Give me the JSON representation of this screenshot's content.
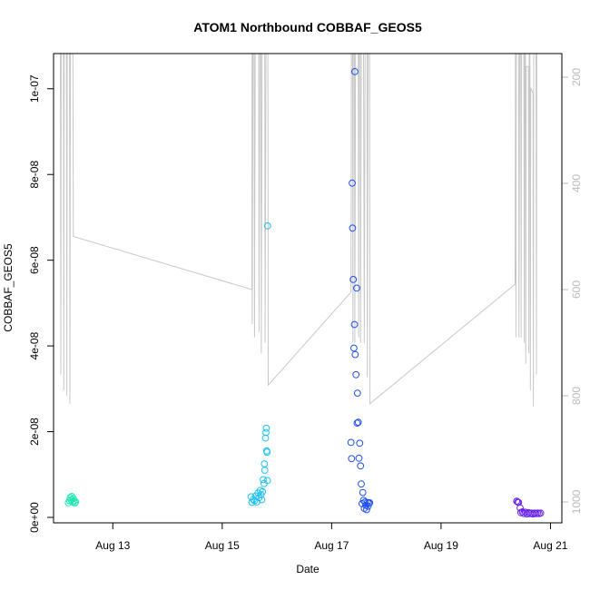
{
  "chart_data": {
    "type": "scatter",
    "title": "ATOM1 Northbound COBBAF_GEOS5",
    "xlabel": "Date",
    "ylabel": "COBBAF_GEOS5",
    "x_ticks": [
      "Aug 13",
      "Aug 15",
      "Aug 17",
      "Aug 19",
      "Aug 21"
    ],
    "y_ticks": [
      "0e+00",
      "2e-08",
      "4e-08",
      "6e-08",
      "8e-08",
      "1e-07"
    ],
    "y2_ticks": [
      "200",
      "400",
      "600",
      "800",
      "1000"
    ],
    "xlim": [
      "2016-08-11 22:00",
      "2016-08-21 05:00"
    ],
    "ylim": [
      0,
      1.08e-07
    ],
    "y2lim": [
      1030,
      140
    ],
    "y2_reversed": true,
    "grid": false,
    "legend": "none",
    "colors": {
      "axis": "#000000",
      "altitude_line": "#c8c8c8",
      "right_axis": "#bbbbbb",
      "flight1": "#1ee8b2",
      "flight2": "#1fc0f2",
      "flight3": "#1f50f0",
      "flight4": "#6a22ee"
    },
    "series": [
      {
        "points": [
          [
            "2016-08-12 04:30",
            3.4e-09
          ],
          [
            "2016-08-12 05:00",
            3.9e-09
          ],
          [
            "2016-08-12 05:20",
            4.6e-09
          ],
          [
            "2016-08-12 05:40",
            4.1e-09
          ],
          [
            "2016-08-12 06:00",
            4.9e-09
          ],
          [
            "2016-08-12 06:20",
            3.6e-09
          ],
          [
            "2016-08-12 06:40",
            4.4e-09
          ],
          [
            "2016-08-12 07:00",
            3.8e-09
          ],
          [
            "2016-08-12 07:20",
            3.3e-09
          ],
          [
            "2016-08-12 07:40",
            3.6e-09
          ]
        ]
      },
      {
        "points": [
          [
            "2016-08-15 12:40",
            4.8e-09
          ],
          [
            "2016-08-15 13:00",
            3.5e-09
          ],
          [
            "2016-08-15 13:40",
            4.2e-09
          ],
          [
            "2016-08-15 14:10",
            3.9e-09
          ],
          [
            "2016-08-15 14:40",
            5e-09
          ],
          [
            "2016-08-15 15:10",
            3.6e-09
          ],
          [
            "2016-08-15 15:40",
            5.7e-09
          ],
          [
            "2016-08-15 16:10",
            4.6e-09
          ],
          [
            "2016-08-15 16:40",
            6.3e-09
          ],
          [
            "2016-08-15 17:00",
            5.3e-09
          ],
          [
            "2016-08-15 17:20",
            4.1e-09
          ],
          [
            "2016-08-15 17:40",
            6e-09
          ],
          [
            "2016-08-15 18:00",
            8.8e-09
          ],
          [
            "2016-08-15 18:20",
            7.9e-09
          ],
          [
            "2016-08-15 18:30",
            1.25e-08
          ],
          [
            "2016-08-15 18:40",
            1.1e-08
          ],
          [
            "2016-08-15 19:00",
            1.85e-08
          ],
          [
            "2016-08-15 19:10",
            1.98e-08
          ],
          [
            "2016-08-15 19:20",
            2.08e-08
          ],
          [
            "2016-08-15 19:30",
            1.55e-08
          ],
          [
            "2016-08-15 19:40",
            1.52e-08
          ],
          [
            "2016-08-15 19:50",
            8.6e-09
          ],
          [
            "2016-08-15 19:55",
            6.8e-08
          ]
        ]
      },
      {
        "points": [
          [
            "2016-08-17 08:30",
            1.75e-08
          ],
          [
            "2016-08-17 08:45",
            1.37e-08
          ],
          [
            "2016-08-17 09:00",
            7.8e-08
          ],
          [
            "2016-08-17 09:10",
            6.75e-08
          ],
          [
            "2016-08-17 09:30",
            5.55e-08
          ],
          [
            "2016-08-17 09:45",
            3.95e-08
          ],
          [
            "2016-08-17 10:00",
            4.5e-08
          ],
          [
            "2016-08-17 10:10",
            1.04e-07
          ],
          [
            "2016-08-17 10:20",
            3.8e-08
          ],
          [
            "2016-08-17 10:40",
            3.33e-08
          ],
          [
            "2016-08-17 11:00",
            5.35e-08
          ],
          [
            "2016-08-17 11:10",
            2.2e-08
          ],
          [
            "2016-08-17 11:20",
            2.9e-08
          ],
          [
            "2016-08-17 11:40",
            2.22e-08
          ],
          [
            "2016-08-17 12:00",
            1.38e-08
          ],
          [
            "2016-08-17 12:20",
            1.73e-08
          ],
          [
            "2016-08-17 12:40",
            1.2e-08
          ],
          [
            "2016-08-17 13:00",
            7.8e-09
          ],
          [
            "2016-08-17 13:20",
            3.2e-09
          ],
          [
            "2016-08-17 13:40",
            5.8e-09
          ],
          [
            "2016-08-17 14:00",
            4e-09
          ],
          [
            "2016-08-17 14:20",
            2.1e-09
          ],
          [
            "2016-08-17 14:40",
            3.6e-09
          ],
          [
            "2016-08-17 15:00",
            2.8e-09
          ],
          [
            "2016-08-17 15:20",
            1.8e-09
          ],
          [
            "2016-08-17 15:40",
            3.5e-09
          ],
          [
            "2016-08-17 16:00",
            2.6e-09
          ],
          [
            "2016-08-17 16:20",
            3.3e-09
          ],
          [
            "2016-08-17 16:40",
            3.4e-09
          ]
        ]
      },
      {
        "points": [
          [
            "2016-08-20 09:10",
            3.8e-09
          ],
          [
            "2016-08-20 09:40",
            3.6e-09
          ],
          [
            "2016-08-20 10:00",
            3.5e-09
          ],
          [
            "2016-08-20 10:40",
            2.2e-09
          ],
          [
            "2016-08-20 11:00",
            1.1e-09
          ],
          [
            "2016-08-20 11:40",
            1.3e-09
          ],
          [
            "2016-08-20 12:20",
            9e-10
          ],
          [
            "2016-08-20 13:00",
            1.2e-09
          ],
          [
            "2016-08-20 13:40",
            8e-10
          ],
          [
            "2016-08-20 14:20",
            1.1e-09
          ],
          [
            "2016-08-20 15:00",
            9e-10
          ],
          [
            "2016-08-20 15:40",
            1e-09
          ],
          [
            "2016-08-20 16:20",
            8e-10
          ],
          [
            "2016-08-20 17:00",
            1e-09
          ],
          [
            "2016-08-20 17:40",
            9e-10
          ],
          [
            "2016-08-20 18:20",
            1e-09
          ],
          [
            "2016-08-20 19:00",
            9e-10
          ],
          [
            "2016-08-20 19:40",
            1e-09
          ]
        ]
      }
    ],
    "altitude_profile": [
      [
        "2016-08-12 01:00",
        140
      ],
      [
        "2016-08-12 01:10",
        760
      ],
      [
        "2016-08-12 01:20",
        140
      ],
      [
        "2016-08-12 02:20",
        140
      ],
      [
        "2016-08-12 02:30",
        790
      ],
      [
        "2016-08-12 02:40",
        140
      ],
      [
        "2016-08-12 03:40",
        140
      ],
      [
        "2016-08-12 03:50",
        800
      ],
      [
        "2016-08-12 04:00",
        140
      ],
      [
        "2016-08-12 05:00",
        140
      ],
      [
        "2016-08-12 05:10",
        815
      ],
      [
        "2016-08-12 05:25",
        140
      ],
      [
        "2016-08-12 06:30",
        140
      ],
      [
        "2016-08-12 06:40",
        500
      ],
      [
        "2016-08-15 13:00",
        600
      ],
      [
        "2016-08-15 13:05",
        140
      ],
      [
        "2016-08-15 13:10",
        665
      ],
      [
        "2016-08-15 13:30",
        140
      ],
      [
        "2016-08-15 14:00",
        140
      ],
      [
        "2016-08-15 14:10",
        690
      ],
      [
        "2016-08-15 14:30",
        140
      ],
      [
        "2016-08-15 16:00",
        140
      ],
      [
        "2016-08-15 16:10",
        680
      ],
      [
        "2016-08-15 16:30",
        140
      ],
      [
        "2016-08-15 17:00",
        140
      ],
      [
        "2016-08-15 17:10",
        720
      ],
      [
        "2016-08-15 17:30",
        140
      ],
      [
        "2016-08-15 18:40",
        140
      ],
      [
        "2016-08-15 18:50",
        700
      ],
      [
        "2016-08-15 19:10",
        140
      ],
      [
        "2016-08-15 20:00",
        140
      ],
      [
        "2016-08-15 20:10",
        780
      ],
      [
        "2016-08-17 08:30",
        605
      ],
      [
        "2016-08-17 08:40",
        140
      ],
      [
        "2016-08-17 09:10",
        140
      ],
      [
        "2016-08-17 09:20",
        700
      ],
      [
        "2016-08-17 09:30",
        140
      ],
      [
        "2016-08-17 10:00",
        140
      ],
      [
        "2016-08-17 10:10",
        700
      ],
      [
        "2016-08-17 10:30",
        140
      ],
      [
        "2016-08-17 11:40",
        140
      ],
      [
        "2016-08-17 11:50",
        690
      ],
      [
        "2016-08-17 12:00",
        140
      ],
      [
        "2016-08-17 12:30",
        140
      ],
      [
        "2016-08-17 12:40",
        700
      ],
      [
        "2016-08-17 13:00",
        140
      ],
      [
        "2016-08-17 14:00",
        140
      ],
      [
        "2016-08-17 14:20",
        700
      ],
      [
        "2016-08-17 14:40",
        140
      ],
      [
        "2016-08-17 15:30",
        140
      ],
      [
        "2016-08-17 15:40",
        765
      ],
      [
        "2016-08-17 16:00",
        140
      ],
      [
        "2016-08-17 16:40",
        140
      ],
      [
        "2016-08-17 16:50",
        815
      ],
      [
        "2016-08-20 08:30",
        590
      ],
      [
        "2016-08-20 08:40",
        140
      ],
      [
        "2016-08-20 08:50",
        690
      ],
      [
        "2016-08-20 09:00",
        140
      ],
      [
        "2016-08-20 10:00",
        140
      ],
      [
        "2016-08-20 10:10",
        690
      ],
      [
        "2016-08-20 10:30",
        140
      ],
      [
        "2016-08-20 11:00",
        140
      ],
      [
        "2016-08-20 11:10",
        690
      ],
      [
        "2016-08-20 11:20",
        140
      ],
      [
        "2016-08-20 12:20",
        140
      ],
      [
        "2016-08-20 12:30",
        700
      ],
      [
        "2016-08-20 12:40",
        140
      ],
      [
        "2016-08-20 13:00",
        140
      ],
      [
        "2016-08-20 13:10",
        740
      ],
      [
        "2016-08-20 13:20",
        180
      ],
      [
        "2016-08-20 14:20",
        180
      ],
      [
        "2016-08-20 14:30",
        720
      ],
      [
        "2016-08-20 14:40",
        140
      ],
      [
        "2016-08-20 15:00",
        140
      ],
      [
        "2016-08-20 15:10",
        790
      ],
      [
        "2016-08-20 15:20",
        220
      ],
      [
        "2016-08-20 16:20",
        230
      ],
      [
        "2016-08-20 16:30",
        820
      ],
      [
        "2016-08-20 16:40",
        140
      ],
      [
        "2016-08-20 17:40",
        140
      ],
      [
        "2016-08-20 17:50",
        760
      ],
      [
        "2016-08-20 18:00",
        140
      ]
    ]
  }
}
